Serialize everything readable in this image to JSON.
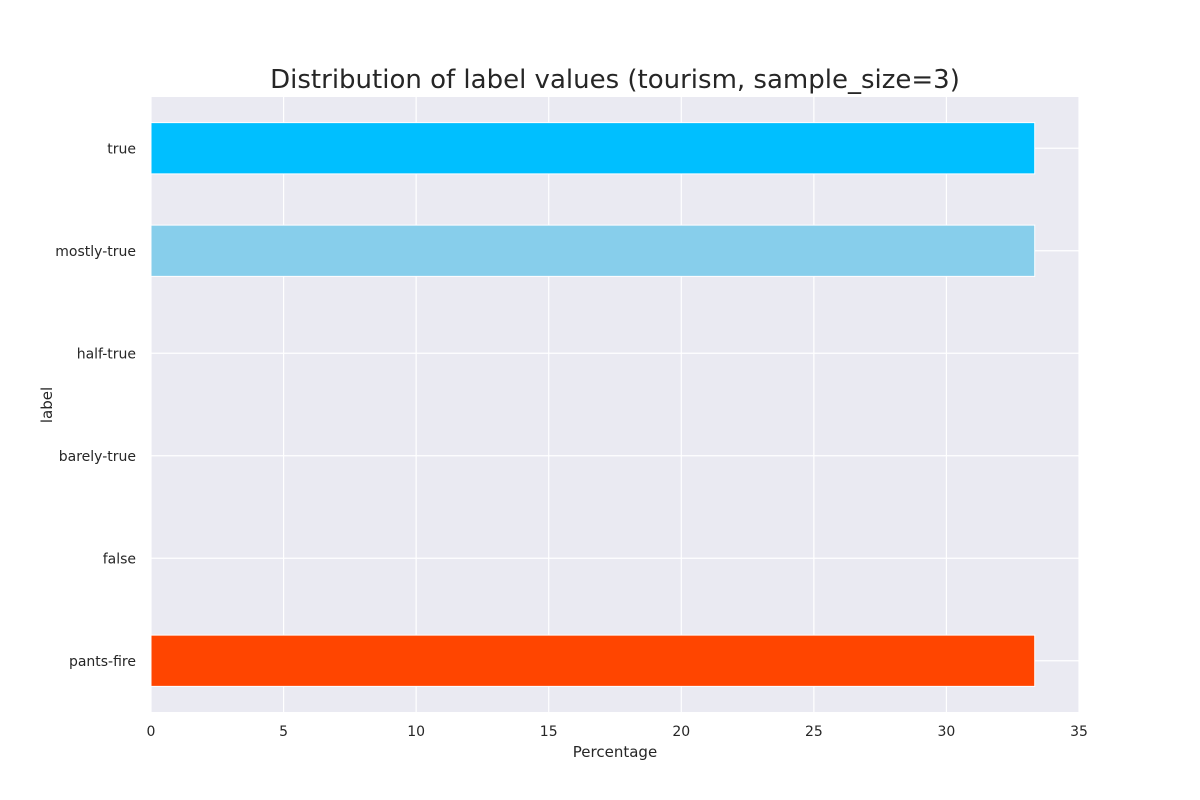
{
  "chart_data": {
    "type": "bar",
    "orientation": "horizontal",
    "title": "Distribution of label values (tourism, sample_size=3)",
    "xlabel": "Percentage",
    "ylabel": "label",
    "categories": [
      "true",
      "mostly-true",
      "half-true",
      "barely-true",
      "false",
      "pants-fire"
    ],
    "values": [
      33.33,
      33.33,
      0,
      0,
      0,
      33.33
    ],
    "colors": [
      "#00BFFF",
      "#87CEEB",
      "#E0E0E0",
      "#E0E0E0",
      "#E0E0E0",
      "#FF4500"
    ],
    "xlim": [
      0,
      35
    ],
    "xticks": [
      0,
      5,
      10,
      15,
      20,
      25,
      30,
      35
    ],
    "grid": true,
    "background": "#EAEAF2",
    "grid_color": "#FFFFFF"
  }
}
